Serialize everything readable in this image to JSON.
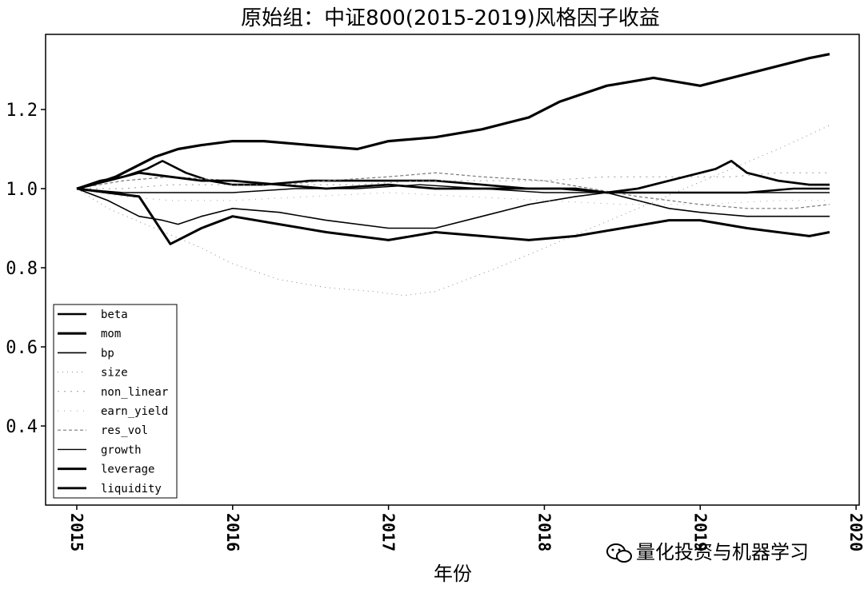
{
  "watermark": "量化投资与机器学习",
  "chart_data": {
    "type": "line",
    "title": "原始组：中证800(2015-2019)风格因子收益",
    "xlabel": "年份",
    "ylabel": "",
    "x_ticks": [
      "2015",
      "2016",
      "2017",
      "2018",
      "2019",
      "2020"
    ],
    "y_ticks": [
      "0.4",
      "0.6",
      "0.8",
      "1.0",
      "1.2"
    ],
    "xlim": [
      2014.8,
      2020.02
    ],
    "ylim": [
      0.2,
      1.39
    ],
    "grid": false,
    "legend_position": "lower-left",
    "series": [
      {
        "name": "beta",
        "color": "#000000",
        "dates": [
          2015.0,
          2015.15,
          2015.3,
          2015.45,
          2015.55,
          2015.7,
          2015.85,
          2016.0,
          2016.2,
          2016.5,
          2016.8,
          2017.0,
          2017.3,
          2017.6,
          2017.9,
          2018.1,
          2018.4,
          2018.7,
          2019.0,
          2019.3,
          2019.6,
          2019.83
        ],
        "values": [
          1.0,
          1.02,
          1.03,
          1.05,
          1.07,
          1.04,
          1.02,
          1.01,
          1.01,
          1.02,
          1.02,
          1.02,
          1.02,
          1.01,
          1.0,
          1.0,
          0.99,
          0.99,
          0.99,
          0.99,
          1.0,
          1.0
        ]
      },
      {
        "name": "mom",
        "color": "#000000",
        "dates": [
          2015.0,
          2015.1,
          2015.25,
          2015.4,
          2015.5,
          2015.65,
          2015.8,
          2016.0,
          2016.2,
          2016.5,
          2016.8,
          2017.0,
          2017.3,
          2017.6,
          2017.9,
          2018.1,
          2018.4,
          2018.7,
          2019.0,
          2019.2,
          2019.5,
          2019.7,
          2019.83
        ],
        "values": [
          1.0,
          1.01,
          1.03,
          1.06,
          1.08,
          1.1,
          1.11,
          1.12,
          1.12,
          1.11,
          1.1,
          1.12,
          1.13,
          1.15,
          1.18,
          1.22,
          1.26,
          1.28,
          1.26,
          1.28,
          1.31,
          1.33,
          1.34
        ]
      },
      {
        "name": "bp",
        "color": "#000000",
        "dates": [
          2015.0,
          2015.2,
          2015.4,
          2015.55,
          2015.65,
          2015.8,
          2016.0,
          2016.3,
          2016.6,
          2017.0,
          2017.3,
          2017.6,
          2017.9,
          2018.2,
          2018.4,
          2018.6,
          2018.8,
          2019.0,
          2019.3,
          2019.6,
          2019.83
        ],
        "values": [
          1.0,
          0.97,
          0.93,
          0.92,
          0.91,
          0.93,
          0.95,
          0.94,
          0.92,
          0.9,
          0.9,
          0.93,
          0.96,
          0.98,
          0.99,
          0.97,
          0.95,
          0.94,
          0.93,
          0.93,
          0.93
        ]
      },
      {
        "name": "size",
        "color": "#8a8a8a",
        "dates": [
          2015.0,
          2015.2,
          2015.5,
          2015.8,
          2016.0,
          2016.3,
          2016.6,
          2016.9,
          2017.1,
          2017.3,
          2017.5,
          2017.7,
          2018.0,
          2018.3,
          2018.6,
          2018.9,
          2019.2,
          2019.5,
          2019.83
        ],
        "values": [
          1.0,
          0.95,
          0.9,
          0.85,
          0.81,
          0.77,
          0.75,
          0.74,
          0.73,
          0.74,
          0.77,
          0.8,
          0.85,
          0.9,
          0.95,
          1.0,
          1.05,
          1.1,
          1.16
        ]
      },
      {
        "name": "non_linear",
        "color": "#9a9a9a",
        "dates": [
          2015.0,
          2015.3,
          2015.6,
          2016.0,
          2016.4,
          2016.8,
          2017.2,
          2017.6,
          2018.0,
          2018.4,
          2018.8,
          2019.2,
          2019.5,
          2019.83
        ],
        "values": [
          1.0,
          1.0,
          1.01,
          1.01,
          1.01,
          1.01,
          1.02,
          1.02,
          1.02,
          1.03,
          1.03,
          1.03,
          1.04,
          1.04
        ]
      },
      {
        "name": "earn_yield",
        "color": "#a0a0a0",
        "dates": [
          2015.0,
          2015.3,
          2015.6,
          2016.0,
          2016.5,
          2017.0,
          2017.5,
          2018.0,
          2018.5,
          2019.0,
          2019.5,
          2019.83
        ],
        "values": [
          1.0,
          0.98,
          0.97,
          0.97,
          0.98,
          0.99,
          0.98,
          0.97,
          0.96,
          0.96,
          0.97,
          0.97
        ]
      },
      {
        "name": "res_vol",
        "color": "#7a7a7a",
        "dates": [
          2015.0,
          2015.3,
          2015.6,
          2016.0,
          2016.3,
          2016.6,
          2017.0,
          2017.3,
          2017.6,
          2018.0,
          2018.3,
          2018.6,
          2019.0,
          2019.3,
          2019.6,
          2019.83
        ],
        "values": [
          1.0,
          1.02,
          1.03,
          1.02,
          1.01,
          1.02,
          1.03,
          1.04,
          1.03,
          1.02,
          1.0,
          0.98,
          0.96,
          0.95,
          0.95,
          0.96
        ]
      },
      {
        "name": "growth",
        "color": "#000000",
        "dates": [
          2015.0,
          2015.3,
          2015.6,
          2016.0,
          2016.4,
          2016.8,
          2017.2,
          2017.6,
          2018.0,
          2018.4,
          2018.8,
          2019.2,
          2019.5,
          2019.83
        ],
        "values": [
          1.0,
          0.99,
          0.99,
          0.99,
          1.0,
          1.0,
          1.01,
          1.0,
          0.99,
          0.99,
          0.99,
          0.99,
          0.99,
          0.99
        ]
      },
      {
        "name": "leverage",
        "color": "#000000",
        "dates": [
          2015.0,
          2015.2,
          2015.4,
          2015.5,
          2015.6,
          2015.8,
          2016.0,
          2016.3,
          2016.6,
          2017.0,
          2017.3,
          2017.6,
          2017.9,
          2018.2,
          2018.5,
          2018.8,
          2019.0,
          2019.3,
          2019.5,
          2019.7,
          2019.83
        ],
        "values": [
          1.0,
          0.99,
          0.98,
          0.92,
          0.86,
          0.9,
          0.93,
          0.91,
          0.89,
          0.87,
          0.89,
          0.88,
          0.87,
          0.88,
          0.9,
          0.92,
          0.92,
          0.9,
          0.89,
          0.88,
          0.89
        ]
      },
      {
        "name": "liquidity",
        "color": "#000000",
        "dates": [
          2015.0,
          2015.2,
          2015.4,
          2015.6,
          2015.8,
          2016.0,
          2016.3,
          2016.6,
          2017.0,
          2017.3,
          2017.6,
          2017.9,
          2018.2,
          2018.4,
          2018.6,
          2018.9,
          2019.1,
          2019.2,
          2019.3,
          2019.5,
          2019.7,
          2019.83
        ],
        "values": [
          1.0,
          1.02,
          1.04,
          1.03,
          1.02,
          1.02,
          1.01,
          1.0,
          1.01,
          1.0,
          1.0,
          1.0,
          1.0,
          0.99,
          1.0,
          1.03,
          1.05,
          1.07,
          1.04,
          1.02,
          1.01,
          1.01
        ]
      }
    ]
  }
}
